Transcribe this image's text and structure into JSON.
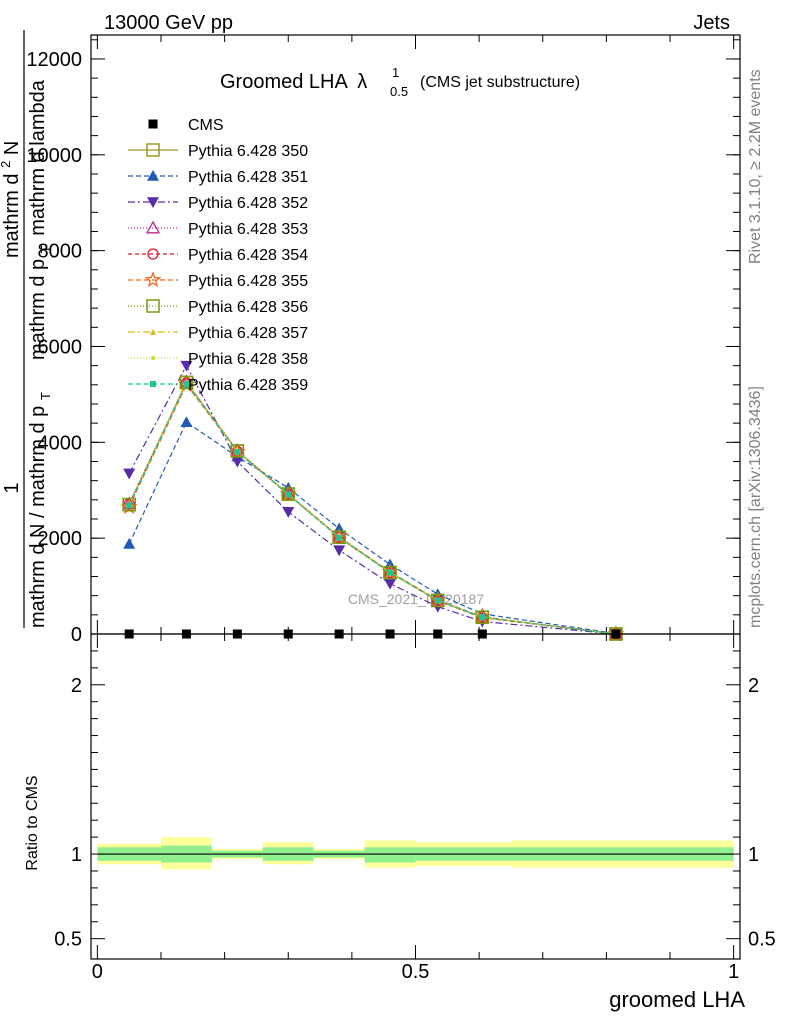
{
  "header": {
    "left": "13000 GeV pp",
    "right": "Jets"
  },
  "side_labels": {
    "rivet": "Rivet 3.1.10, ≥ 2.2M events",
    "mcplots": "mcplots.cern.ch [arXiv:1306.3436]"
  },
  "watermark": "CMS_2021_I1920187",
  "colors": {
    "cms": "#000000",
    "p350": "#999920",
    "p351": "#1f5bb5",
    "p352": "#5a2aa8",
    "p353": "#c02890",
    "p354": "#e01830",
    "p355": "#ee6a1a",
    "p356": "#7a9a10",
    "p357": "#d6c018",
    "p358": "#c8e030",
    "p359": "#20c890",
    "band_inner": "#90f090",
    "band_outer": "#ffff99"
  },
  "chart_data": [
    {
      "type": "line",
      "title_main": "Groomed LHA",
      "title_symbol": "λ",
      "title_sup": "1",
      "title_sub": "0.5",
      "title_suffix": "(CMS jet substructure)",
      "ylabel_parts": {
        "one": "1",
        "den": "mathrm d N / mathrm d p",
        "den_sub": "T",
        "num": "mathrm d",
        "num_sup": "2",
        "num_rest": "N",
        "den2": "mathrm d p",
        "den2_sub": "T",
        "den2_rest": "mathrm d lambda"
      },
      "ylim": [
        0,
        12500
      ],
      "xlim": [
        -0.01,
        1.01
      ],
      "y_ticks": [
        0,
        2000,
        4000,
        6000,
        8000,
        10000,
        12000
      ],
      "y_tick_labels": [
        "0",
        "2000",
        "4000",
        "6000",
        "8000",
        "10000",
        "12000"
      ],
      "x": [
        0.05,
        0.14,
        0.22,
        0.3,
        0.38,
        0.46,
        0.535,
        0.605,
        0.815
      ],
      "series": [
        {
          "name": "CMS",
          "key": "cms",
          "marker": "square-filled",
          "dash": "",
          "values": [
            0,
            0,
            0,
            0,
            0,
            0,
            0,
            0,
            0
          ]
        },
        {
          "name": "Pythia 6.428 350",
          "key": "p350",
          "marker": "square-open",
          "dash": "",
          "values": [
            2700,
            5250,
            3820,
            2920,
            2020,
            1280,
            700,
            350,
            0
          ]
        },
        {
          "name": "Pythia 6.428 351",
          "key": "p351",
          "marker": "triangle-up-filled",
          "dash": "5,3",
          "values": [
            1880,
            4420,
            3700,
            3050,
            2200,
            1450,
            830,
            420,
            10
          ]
        },
        {
          "name": "Pythia 6.428 352",
          "key": "p352",
          "marker": "triangle-down-filled",
          "dash": "7,3,2,3",
          "values": [
            3350,
            5600,
            3600,
            2550,
            1750,
            1050,
            570,
            260,
            0
          ]
        },
        {
          "name": "Pythia 6.428 353",
          "key": "p353",
          "marker": "triangle-up-open",
          "dash": "1,2",
          "values": [
            2720,
            5260,
            3830,
            2930,
            2030,
            1290,
            700,
            350,
            0
          ]
        },
        {
          "name": "Pythia 6.428 354",
          "key": "p354",
          "marker": "circle-open",
          "dash": "4,3",
          "values": [
            2710,
            5240,
            3810,
            2910,
            2010,
            1280,
            690,
            340,
            0
          ]
        },
        {
          "name": "Pythia 6.428 355",
          "key": "p355",
          "marker": "star-open",
          "dash": "5,3",
          "values": [
            2650,
            5200,
            3800,
            2920,
            2030,
            1300,
            710,
            360,
            0
          ]
        },
        {
          "name": "Pythia 6.428 356",
          "key": "p356",
          "marker": "square-open",
          "dash": "1,2",
          "values": [
            2700,
            5250,
            3820,
            2920,
            2020,
            1280,
            700,
            350,
            0
          ]
        },
        {
          "name": "Pythia 6.428 357",
          "key": "p357",
          "marker": "tri-small",
          "dash": "7,3,2,3",
          "values": [
            2690,
            5230,
            3810,
            2920,
            2020,
            1290,
            700,
            350,
            0
          ]
        },
        {
          "name": "Pythia 6.428 358",
          "key": "p358",
          "marker": "dot",
          "dash": "1,2",
          "values": [
            2700,
            5240,
            3820,
            2920,
            2020,
            1280,
            700,
            350,
            0
          ]
        },
        {
          "name": "Pythia 6.428 359",
          "key": "p359",
          "marker": "square-filled-small",
          "dash": "5,3",
          "values": [
            2680,
            5220,
            3800,
            2910,
            2010,
            1280,
            700,
            350,
            0
          ]
        }
      ]
    },
    {
      "type": "area",
      "ylabel": "Ratio to CMS",
      "xlabel": "groomed LHA",
      "ylim": [
        0.38,
        2.3
      ],
      "xlim": [
        -0.01,
        1.01
      ],
      "y_ticks": [
        0.5,
        1,
        2
      ],
      "y_tick_labels": [
        "0.5",
        "1",
        "2"
      ],
      "x_ticks": [
        0,
        0.5,
        1
      ],
      "x_tick_labels": [
        "0",
        "0.5",
        "1"
      ],
      "reference": 1,
      "bins": [
        {
          "lo": 0.0,
          "hi": 0.1,
          "inner": [
            0.96,
            1.04
          ],
          "outer": [
            0.94,
            1.06
          ]
        },
        {
          "lo": 0.1,
          "hi": 0.18,
          "inner": [
            0.95,
            1.05
          ],
          "outer": [
            0.91,
            1.1
          ]
        },
        {
          "lo": 0.18,
          "hi": 0.26,
          "inner": [
            0.98,
            1.02
          ],
          "outer": [
            0.97,
            1.03
          ]
        },
        {
          "lo": 0.26,
          "hi": 0.34,
          "inner": [
            0.96,
            1.04
          ],
          "outer": [
            0.94,
            1.07
          ]
        },
        {
          "lo": 0.34,
          "hi": 0.42,
          "inner": [
            0.98,
            1.02
          ],
          "outer": [
            0.97,
            1.03
          ]
        },
        {
          "lo": 0.42,
          "hi": 0.5,
          "inner": [
            0.95,
            1.04
          ],
          "outer": [
            0.92,
            1.08
          ]
        },
        {
          "lo": 0.5,
          "hi": 0.65,
          "inner": [
            0.96,
            1.04
          ],
          "outer": [
            0.93,
            1.07
          ]
        },
        {
          "lo": 0.65,
          "hi": 1.0,
          "inner": [
            0.96,
            1.04
          ],
          "outer": [
            0.92,
            1.08
          ]
        }
      ]
    }
  ]
}
